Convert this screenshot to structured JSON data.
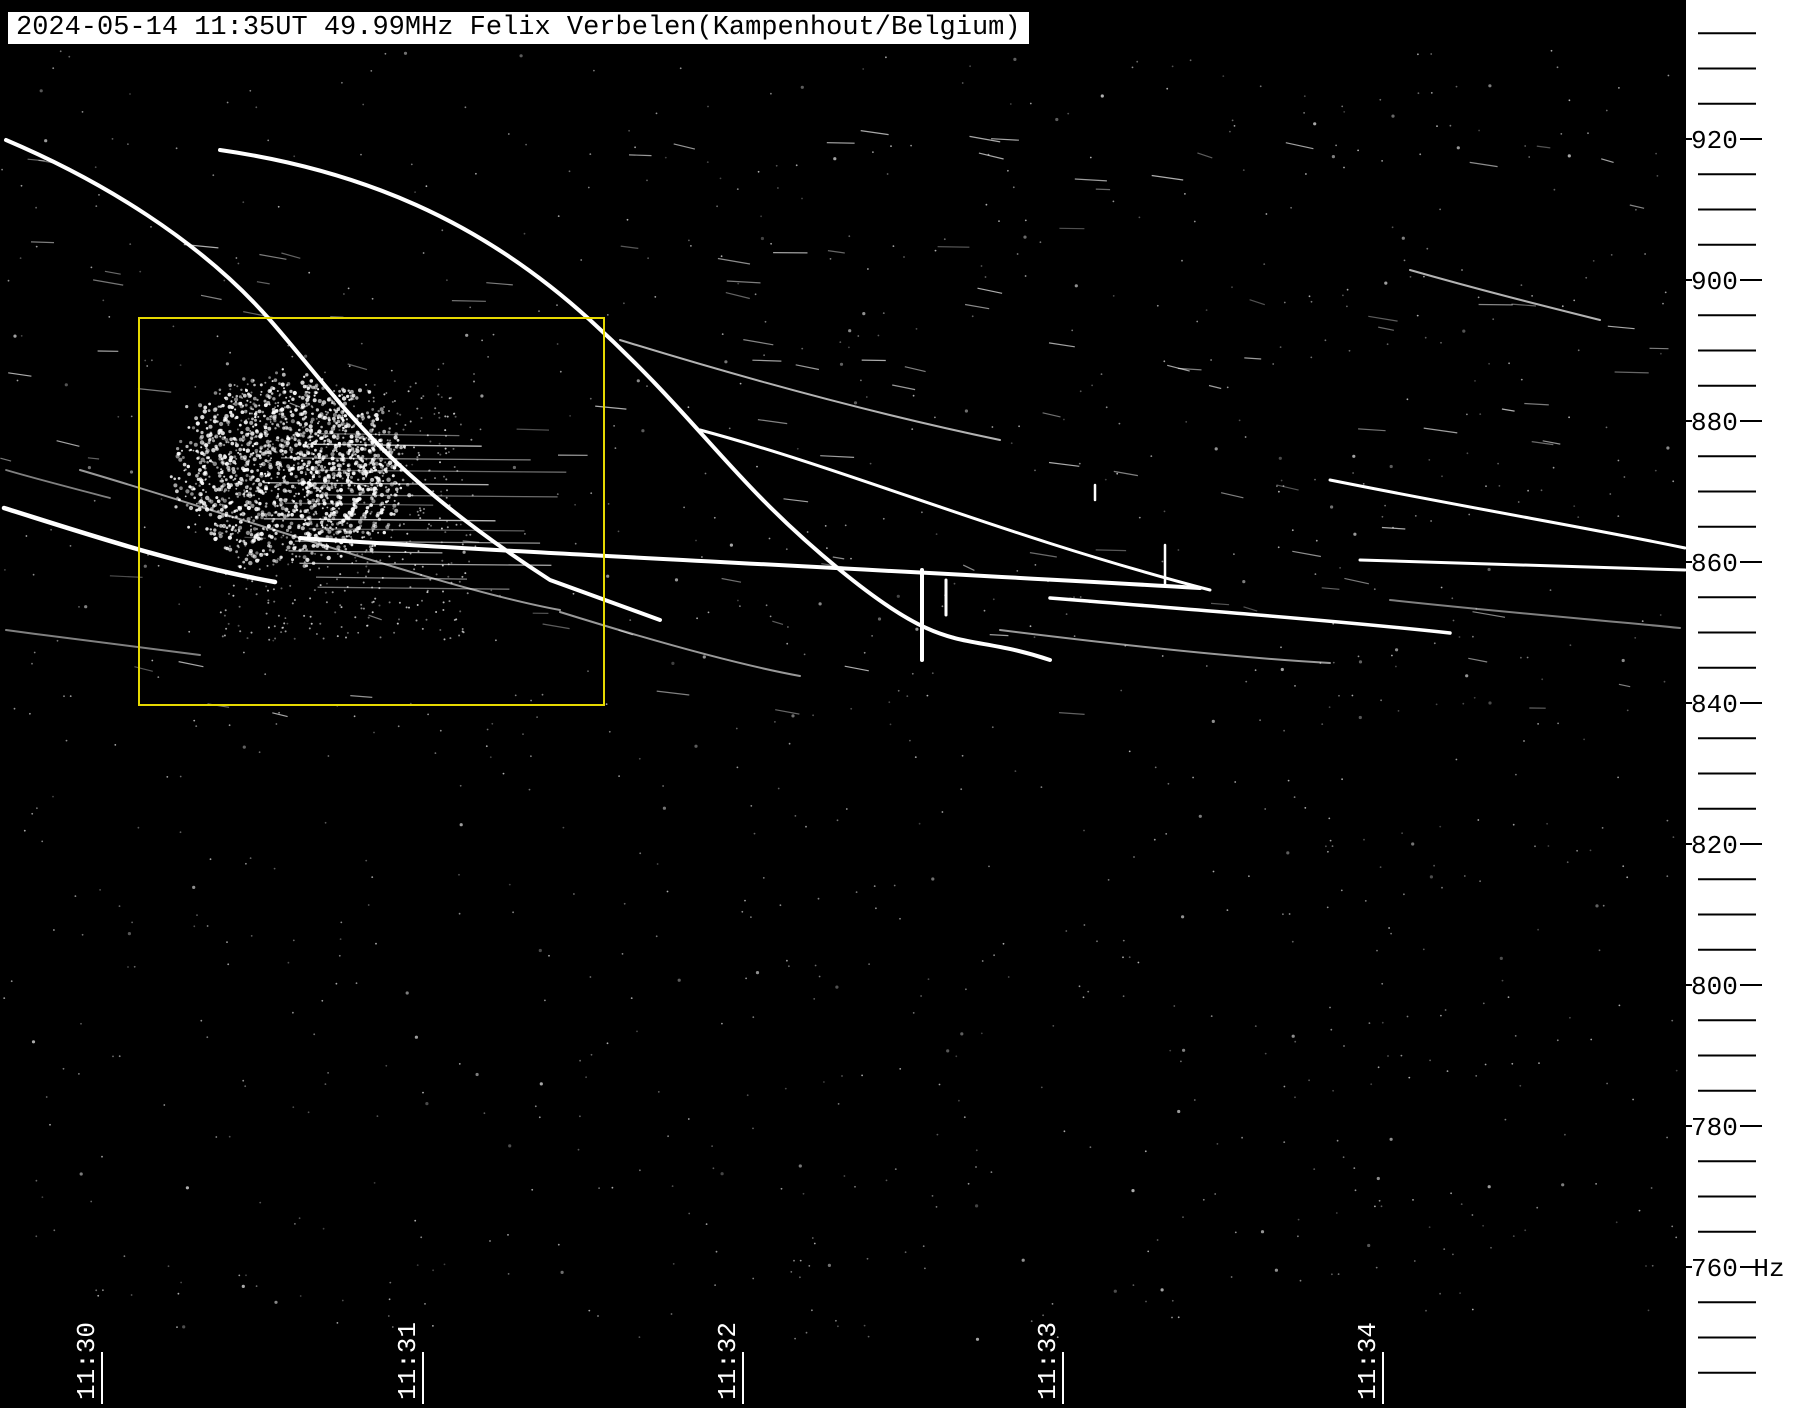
{
  "chart_data": {
    "type": "heatmap",
    "title": "2024-05-14 11:35UT 49.99MHz Felix Verbelen(Kampenhout/Belgium)",
    "x_ticks": [
      "11:30",
      "11:31",
      "11:32",
      "11:33",
      "11:34"
    ],
    "y_ticks": [
      "920",
      "900",
      "880",
      "860",
      "840",
      "820",
      "800",
      "780",
      "760"
    ],
    "y_unit": "Hz",
    "ylim": [
      745,
      935
    ],
    "highlight_box": {
      "x_range": [
        "11:30:07",
        "11:31:34"
      ],
      "y_range": [
        841,
        896
      ]
    },
    "colors": {
      "background": "#000000",
      "trace": "#ffffff",
      "highlight": "#e6d800",
      "axis": "#ffffff"
    }
  }
}
